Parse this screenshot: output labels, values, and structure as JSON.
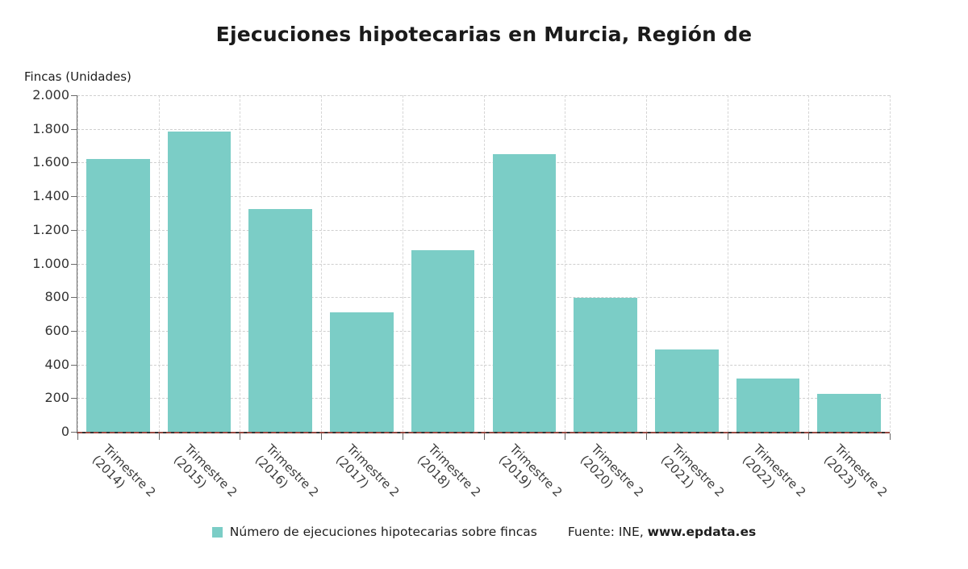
{
  "chart_data": {
    "type": "bar",
    "title": "Ejecuciones hipotecarias en Murcia, Región de",
    "ylabel": "Fincas (Unidades)",
    "categories": [
      [
        "Trimestre 2",
        "(2014)"
      ],
      [
        "Trimestre 2",
        "(2015)"
      ],
      [
        "Trimestre 2",
        "(2016)"
      ],
      [
        "Trimestre 2",
        "(2017)"
      ],
      [
        "Trimestre 2",
        "(2018)"
      ],
      [
        "Trimestre 2",
        "(2019)"
      ],
      [
        "Trimestre 2",
        "(2020)"
      ],
      [
        "Trimestre 2",
        "(2021)"
      ],
      [
        "Trimestre 2",
        "(2022)"
      ],
      [
        "Trimestre 2",
        "(2023)"
      ]
    ],
    "values": [
      1620,
      1785,
      1325,
      710,
      1080,
      1650,
      795,
      490,
      315,
      225
    ],
    "ylim": [
      0,
      2000
    ],
    "y_ticks": [
      {
        "value": 0,
        "label": "0"
      },
      {
        "value": 200,
        "label": "200"
      },
      {
        "value": 400,
        "label": "400"
      },
      {
        "value": 600,
        "label": "600"
      },
      {
        "value": 800,
        "label": "800"
      },
      {
        "value": 1000,
        "label": "1.000"
      },
      {
        "value": 1200,
        "label": "1.200"
      },
      {
        "value": 1400,
        "label": "1.400"
      },
      {
        "value": 1600,
        "label": "1.600"
      },
      {
        "value": 1800,
        "label": "1.800"
      },
      {
        "value": 2000,
        "label": "2.000"
      }
    ],
    "grid": true,
    "legend_position": "bottom",
    "legend_label": "Número de ejecuciones hipotecarias sobre fincas",
    "source_prefix": "Fuente: INE, ",
    "source_link": "www.epdata.es",
    "bar_color": "#7bcdc6"
  }
}
